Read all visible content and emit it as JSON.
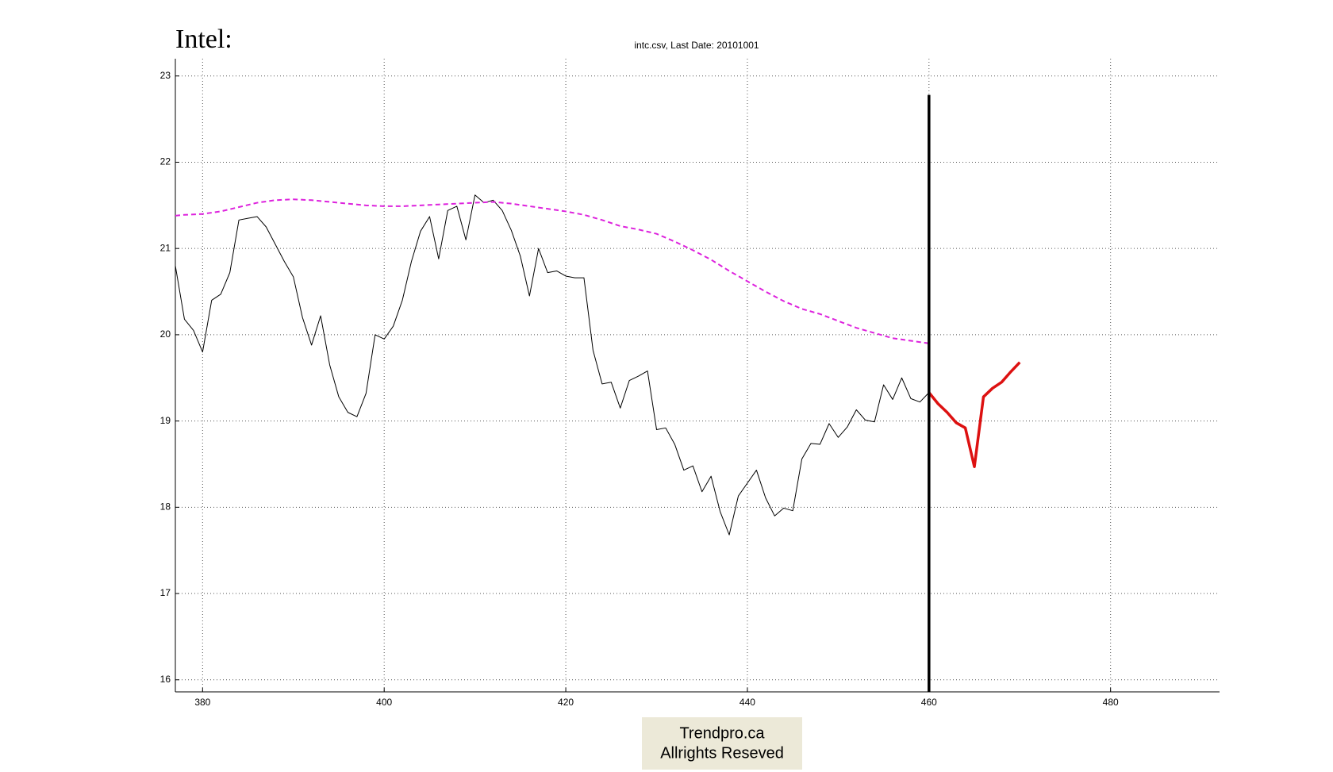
{
  "chart_data": {
    "type": "line",
    "title": "Intel:",
    "subtitle": "intc.csv, Last Date: 20101001",
    "annotations": [
      "Trendpro.ca",
      "Allrights Reseved"
    ],
    "xlim": [
      377,
      492
    ],
    "ylim": [
      15.86,
      23.2
    ],
    "xticks": [
      380,
      400,
      420,
      440,
      460,
      480
    ],
    "yticks": [
      16,
      17,
      18,
      19,
      20,
      21,
      22,
      23
    ],
    "grid": true,
    "vline": {
      "x": 460,
      "ytop": 22.78,
      "color": "#000000"
    },
    "series": [
      {
        "color": "#000000",
        "style": "solid",
        "width": 1,
        "x": [
          377,
          378,
          379,
          380,
          381,
          382,
          383,
          384,
          385,
          386,
          387,
          388,
          389,
          390,
          391,
          392,
          393,
          394,
          395,
          396,
          397,
          398,
          399,
          400,
          401,
          402,
          403,
          404,
          405,
          406,
          407,
          408,
          409,
          410,
          411,
          412,
          413,
          414,
          415,
          416,
          417,
          418,
          419,
          420,
          421,
          422,
          423,
          424,
          425,
          426,
          427,
          428,
          429,
          430,
          431,
          432,
          433,
          434,
          435,
          436,
          437,
          438,
          439,
          440,
          441,
          442,
          443,
          444,
          445,
          446,
          447,
          448,
          449,
          450,
          451,
          452,
          453,
          454,
          455,
          456,
          457,
          458,
          459,
          460
        ],
        "values": [
          20.8,
          20.18,
          20.05,
          19.8,
          20.4,
          20.47,
          20.72,
          21.33,
          21.35,
          21.37,
          21.25,
          21.05,
          20.85,
          20.67,
          20.2,
          19.88,
          20.22,
          19.65,
          19.28,
          19.1,
          19.05,
          19.32,
          20.0,
          19.95,
          20.1,
          20.4,
          20.85,
          21.2,
          21.37,
          20.88,
          21.44,
          21.49,
          21.1,
          21.62,
          21.53,
          21.56,
          21.44,
          21.21,
          20.91,
          20.45,
          21.0,
          20.72,
          20.74,
          20.68,
          20.66,
          20.66,
          19.82,
          19.43,
          19.45,
          19.15,
          19.47,
          19.52,
          19.58,
          18.9,
          18.92,
          18.73,
          18.43,
          18.48,
          18.18,
          18.36,
          17.95,
          17.68,
          18.13,
          18.28,
          18.43,
          18.11,
          17.9,
          17.99,
          17.96,
          18.56,
          18.74,
          18.73,
          18.97,
          18.81,
          18.93,
          19.13,
          19.01,
          18.99,
          19.42,
          19.25,
          19.5,
          19.26,
          19.22,
          19.33
        ]
      },
      {
        "color": "#dd22dd",
        "style": "dashed",
        "width": 2,
        "x": [
          377,
          378,
          380,
          382,
          384,
          386,
          388,
          390,
          392,
          394,
          396,
          398,
          400,
          402,
          404,
          406,
          408,
          410,
          412,
          414,
          416,
          418,
          420,
          422,
          424,
          426,
          428,
          430,
          432,
          434,
          436,
          438,
          440,
          442,
          444,
          446,
          448,
          450,
          452,
          454,
          456,
          458,
          460
        ],
        "values": [
          21.38,
          21.39,
          21.4,
          21.43,
          21.48,
          21.53,
          21.56,
          21.57,
          21.56,
          21.54,
          21.52,
          21.5,
          21.49,
          21.49,
          21.5,
          21.51,
          21.52,
          21.53,
          21.54,
          21.52,
          21.49,
          21.46,
          21.43,
          21.39,
          21.33,
          21.26,
          21.22,
          21.17,
          21.08,
          20.98,
          20.87,
          20.74,
          20.62,
          20.5,
          20.39,
          20.3,
          20.24,
          20.16,
          20.08,
          20.02,
          19.96,
          19.93,
          19.9
        ]
      },
      {
        "color": "#dd1111",
        "style": "solid",
        "width": 3.5,
        "x": [
          460,
          461,
          462,
          463,
          464,
          465,
          466,
          467,
          468,
          469,
          470
        ],
        "values": [
          19.33,
          19.2,
          19.1,
          18.98,
          18.92,
          18.47,
          19.28,
          19.38,
          19.45,
          19.57,
          19.68
        ]
      }
    ]
  }
}
